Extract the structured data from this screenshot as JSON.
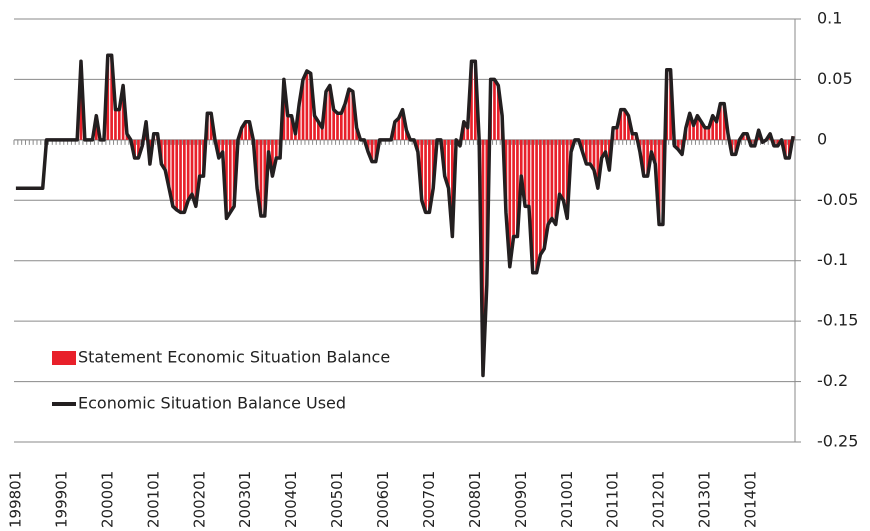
{
  "chart_data": {
    "type": "bar",
    "categories": [
      "199801",
      null,
      null,
      null,
      null,
      null,
      null,
      null,
      null,
      null,
      null,
      null,
      "199901",
      null,
      null,
      null,
      null,
      null,
      null,
      null,
      null,
      null,
      null,
      null,
      "200001",
      null,
      null,
      null,
      null,
      null,
      null,
      null,
      null,
      null,
      null,
      null,
      "200101",
      null,
      null,
      null,
      null,
      null,
      null,
      null,
      null,
      null,
      null,
      null,
      "200201",
      null,
      null,
      null,
      null,
      null,
      null,
      null,
      null,
      null,
      null,
      null,
      "200301",
      null,
      null,
      null,
      null,
      null,
      null,
      null,
      null,
      null,
      null,
      null,
      "200401",
      null,
      null,
      null,
      null,
      null,
      null,
      null,
      null,
      null,
      null,
      null,
      "200501",
      null,
      null,
      null,
      null,
      null,
      null,
      null,
      null,
      null,
      null,
      null,
      "200601",
      null,
      null,
      null,
      null,
      null,
      null,
      null,
      null,
      null,
      null,
      null,
      "200701",
      null,
      null,
      null,
      null,
      null,
      null,
      null,
      null,
      null,
      null,
      null,
      "200801",
      null,
      null,
      null,
      null,
      null,
      null,
      null,
      null,
      null,
      null,
      null,
      "200901",
      null,
      null,
      null,
      null,
      null,
      null,
      null,
      null,
      null,
      null,
      null,
      "201001",
      null,
      null,
      null,
      null,
      null,
      null,
      null,
      null,
      null,
      null,
      null,
      "201101",
      null,
      null,
      null,
      null,
      null,
      null,
      null,
      null,
      null,
      null,
      null,
      "201201",
      null,
      null,
      null,
      null,
      null,
      null,
      null,
      null,
      null,
      null,
      null,
      "201301",
      null,
      null,
      null,
      null,
      null,
      null,
      null,
      null,
      null,
      null,
      null,
      "201401",
      null,
      null,
      null,
      null,
      null,
      null,
      null,
      null,
      null,
      null,
      null
    ],
    "series": [
      {
        "name": "Statement Economic Situation Balance",
        "type": "bar",
        "color": "#e8202a",
        "values": [
          0,
          0,
          0,
          0,
          0,
          0,
          0,
          0,
          0,
          0,
          0,
          0,
          0,
          0,
          0,
          0,
          0,
          0.065,
          0,
          0,
          0,
          0.02,
          0,
          0,
          0.07,
          0.07,
          0.025,
          0.025,
          0.045,
          0.005,
          0,
          -0.015,
          -0.015,
          -0.005,
          0.015,
          -0.02,
          0.005,
          0.005,
          -0.02,
          -0.025,
          -0.04,
          -0.055,
          -0.058,
          -0.06,
          -0.06,
          -0.05,
          -0.045,
          -0.055,
          -0.03,
          -0.03,
          0.022,
          0.022,
          0,
          -0.015,
          -0.01,
          -0.065,
          -0.06,
          -0.055,
          0,
          0.01,
          0.015,
          0.015,
          0,
          -0.04,
          -0.063,
          -0.063,
          -0.01,
          -0.03,
          -0.015,
          -0.015,
          0.05,
          0.02,
          0.02,
          0.005,
          0.03,
          0.05,
          0.057,
          0.055,
          0.02,
          0.015,
          0.01,
          0.04,
          0.045,
          0.025,
          0.022,
          0.022,
          0.03,
          0.042,
          0.04,
          0.01,
          0,
          0,
          -0.01,
          -0.018,
          -0.018,
          0,
          0,
          0,
          0,
          0.015,
          0.018,
          0.025,
          0.008,
          0,
          0,
          -0.01,
          -0.05,
          -0.06,
          -0.06,
          -0.04,
          0,
          0,
          -0.03,
          -0.04,
          -0.08,
          0,
          -0.005,
          0.015,
          0.01,
          0.065,
          0.065,
          0,
          -0.195,
          -0.12,
          0.05,
          0.05,
          0.045,
          0.02,
          -0.06,
          -0.105,
          -0.08,
          -0.08,
          -0.03,
          -0.055,
          -0.055,
          -0.11,
          -0.11,
          -0.095,
          -0.09,
          -0.07,
          -0.065,
          -0.07,
          -0.045,
          -0.05,
          -0.065,
          -0.01,
          0,
          0,
          -0.01,
          -0.02,
          -0.02,
          -0.025,
          -0.04,
          -0.015,
          -0.01,
          -0.025,
          0.01,
          0.01,
          0.025,
          0.025,
          0.02,
          0.005,
          0.005,
          -0.01,
          -0.03,
          -0.03,
          -0.01,
          -0.02,
          -0.07,
          -0.07,
          0.058,
          0.058,
          -0.005,
          -0.008,
          -0.012,
          0.01,
          0.022,
          0.012,
          0.02,
          0.015,
          0.01,
          0.01,
          0.02,
          0.015,
          0.03,
          0.03,
          0.005,
          -0.012,
          -0.012,
          0,
          0.005,
          0.005,
          -0.005,
          -0.005,
          0.008,
          -0.002,
          0,
          0.005,
          -0.005,
          -0.005,
          0,
          -0.015,
          -0.015,
          0.003
        ]
      },
      {
        "name": "Economic Situation Balance Used",
        "type": "line",
        "color": "#231f20",
        "values": [
          -0.04,
          -0.04,
          -0.04,
          -0.04,
          -0.04,
          -0.04,
          -0.04,
          -0.04,
          0,
          0,
          0,
          0,
          0,
          0,
          0,
          0,
          0,
          0.065,
          0,
          0,
          0,
          0.02,
          0,
          0,
          0.07,
          0.07,
          0.025,
          0.025,
          0.045,
          0.005,
          0,
          -0.015,
          -0.015,
          -0.005,
          0.015,
          -0.02,
          0.005,
          0.005,
          -0.02,
          -0.025,
          -0.04,
          -0.055,
          -0.058,
          -0.06,
          -0.06,
          -0.05,
          -0.045,
          -0.055,
          -0.03,
          -0.03,
          0.022,
          0.022,
          0,
          -0.015,
          -0.01,
          -0.065,
          -0.06,
          -0.055,
          0,
          0.01,
          0.015,
          0.015,
          0,
          -0.04,
          -0.063,
          -0.063,
          -0.01,
          -0.03,
          -0.015,
          -0.015,
          0.05,
          0.02,
          0.02,
          0.005,
          0.03,
          0.05,
          0.057,
          0.055,
          0.02,
          0.015,
          0.01,
          0.04,
          0.045,
          0.025,
          0.022,
          0.022,
          0.03,
          0.042,
          0.04,
          0.01,
          0,
          0,
          -0.01,
          -0.018,
          -0.018,
          0,
          0,
          0,
          0,
          0.015,
          0.018,
          0.025,
          0.008,
          0,
          0,
          -0.01,
          -0.05,
          -0.06,
          -0.06,
          -0.04,
          0,
          0,
          -0.03,
          -0.04,
          -0.08,
          0,
          -0.005,
          0.015,
          0.01,
          0.065,
          0.065,
          0,
          -0.195,
          -0.12,
          0.05,
          0.05,
          0.045,
          0.02,
          -0.06,
          -0.105,
          -0.08,
          -0.08,
          -0.03,
          -0.055,
          -0.055,
          -0.11,
          -0.11,
          -0.095,
          -0.09,
          -0.07,
          -0.065,
          -0.07,
          -0.045,
          -0.05,
          -0.065,
          -0.01,
          0,
          0,
          -0.01,
          -0.02,
          -0.02,
          -0.025,
          -0.04,
          -0.015,
          -0.01,
          -0.025,
          0.01,
          0.01,
          0.025,
          0.025,
          0.02,
          0.005,
          0.005,
          -0.01,
          -0.03,
          -0.03,
          -0.01,
          -0.02,
          -0.07,
          -0.07,
          0.058,
          0.058,
          -0.005,
          -0.008,
          -0.012,
          0.01,
          0.022,
          0.012,
          0.02,
          0.015,
          0.01,
          0.01,
          0.02,
          0.015,
          0.03,
          0.03,
          0.005,
          -0.012,
          -0.012,
          0,
          0.005,
          0.005,
          -0.005,
          -0.005,
          0.008,
          -0.002,
          0,
          0.005,
          -0.005,
          -0.005,
          0,
          -0.015,
          -0.015,
          0.003
        ]
      }
    ],
    "ylim": [
      -0.25,
      0.1
    ],
    "yticks": [
      0.1,
      0.05,
      0,
      -0.05,
      -0.1,
      -0.15,
      -0.2,
      -0.25
    ],
    "grid": true,
    "legend": "lower-left"
  }
}
